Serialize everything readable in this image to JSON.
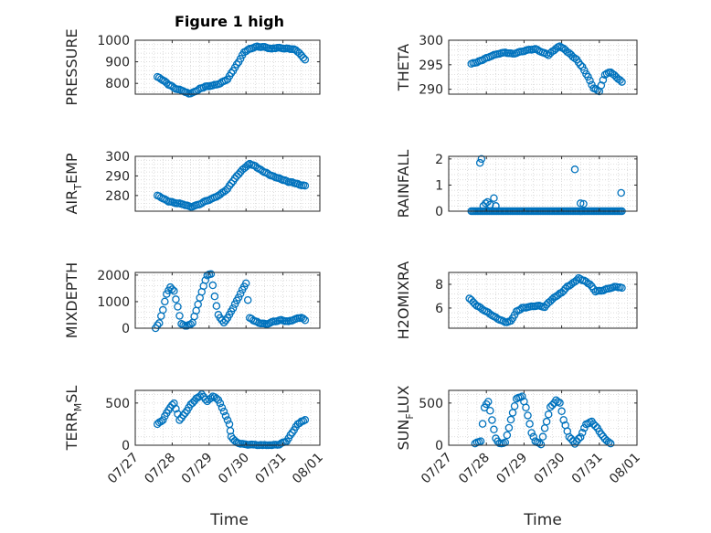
{
  "figure": {
    "title": "Figure 1 high",
    "xlabel": "Time"
  },
  "colors": {
    "marker": "#0072bd",
    "axis": "#262626",
    "grid": "#cfcfcf"
  },
  "chart_data": [
    {
      "type": "scatter",
      "ylabel": "PRESSURE",
      "ylim": [
        750,
        1000
      ],
      "yticks": [
        800,
        900,
        1000
      ],
      "grid": true,
      "xlim": [
        "2018-07-27",
        "2018-08-01"
      ],
      "xticks": [
        "07/27",
        "07/28",
        "07/29",
        "07/30",
        "07/31",
        "08/01"
      ],
      "curve": [
        [
          0.6,
          830
        ],
        [
          0.75,
          815
        ],
        [
          0.9,
          795
        ],
        [
          1.1,
          775
        ],
        [
          1.3,
          765
        ],
        [
          1.45,
          752
        ],
        [
          1.6,
          760
        ],
        [
          1.75,
          775
        ],
        [
          1.9,
          785
        ],
        [
          2.1,
          790
        ],
        [
          2.3,
          800
        ],
        [
          2.5,
          820
        ],
        [
          2.65,
          860
        ],
        [
          2.8,
          900
        ],
        [
          2.95,
          945
        ],
        [
          3.1,
          960
        ],
        [
          3.3,
          970
        ],
        [
          3.5,
          968
        ],
        [
          3.7,
          960
        ],
        [
          3.85,
          965
        ],
        [
          4.05,
          962
        ],
        [
          4.2,
          960
        ],
        [
          4.35,
          955
        ],
        [
          4.5,
          930
        ],
        [
          4.6,
          910
        ]
      ]
    },
    {
      "type": "scatter",
      "ylabel": "THETA",
      "ylim": [
        289,
        300
      ],
      "yticks": [
        290,
        295,
        300
      ],
      "grid": true,
      "xlim": [
        "2018-07-27",
        "2018-08-01"
      ],
      "xticks": [
        "07/27",
        "07/28",
        "07/29",
        "07/30",
        "07/31",
        "08/01"
      ],
      "curve": [
        [
          0.6,
          295.2
        ],
        [
          0.75,
          295.5
        ],
        [
          0.9,
          296
        ],
        [
          1.1,
          296.7
        ],
        [
          1.3,
          297.2
        ],
        [
          1.5,
          297.5
        ],
        [
          1.7,
          297.2
        ],
        [
          1.9,
          297.6
        ],
        [
          2.1,
          298
        ],
        [
          2.3,
          298.2
        ],
        [
          2.5,
          297.5
        ],
        [
          2.65,
          297
        ],
        [
          2.8,
          298
        ],
        [
          2.95,
          298.8
        ],
        [
          3.1,
          298
        ],
        [
          3.25,
          297
        ],
        [
          3.4,
          296
        ],
        [
          3.55,
          294.5
        ],
        [
          3.7,
          292.5
        ],
        [
          3.85,
          290.2
        ],
        [
          4.0,
          289.6
        ],
        [
          4.15,
          293
        ],
        [
          4.3,
          293.5
        ],
        [
          4.45,
          292.5
        ],
        [
          4.6,
          291.5
        ]
      ]
    },
    {
      "type": "scatter",
      "ylabel": "AIR_TEMP",
      "ylabel_main": "AIR",
      "ylabel_sub": "T",
      "ylabel_rest": "EMP",
      "ylim": [
        272,
        300
      ],
      "yticks": [
        280,
        290,
        300
      ],
      "grid": true,
      "xlim": [
        "2018-07-27",
        "2018-08-01"
      ],
      "xticks": [
        "07/27",
        "07/28",
        "07/29",
        "07/30",
        "07/31",
        "08/01"
      ],
      "curve": [
        [
          0.6,
          280
        ],
        [
          0.75,
          278.5
        ],
        [
          0.9,
          277
        ],
        [
          1.1,
          276.2
        ],
        [
          1.3,
          275.5
        ],
        [
          1.5,
          274.2
        ],
        [
          1.7,
          275.2
        ],
        [
          1.9,
          277
        ],
        [
          2.1,
          278.5
        ],
        [
          2.3,
          280.5
        ],
        [
          2.5,
          283.5
        ],
        [
          2.65,
          287.5
        ],
        [
          2.8,
          291
        ],
        [
          2.95,
          294
        ],
        [
          3.1,
          296.2
        ],
        [
          3.25,
          295
        ],
        [
          3.4,
          293
        ],
        [
          3.55,
          291.5
        ],
        [
          3.7,
          290
        ],
        [
          3.85,
          289
        ],
        [
          4.0,
          288
        ],
        [
          4.15,
          287
        ],
        [
          4.3,
          286.5
        ],
        [
          4.45,
          285.5
        ],
        [
          4.6,
          285
        ]
      ]
    },
    {
      "type": "scatter",
      "ylabel": "RAINFALL",
      "ylim": [
        0,
        2.1
      ],
      "yticks": [
        0,
        1,
        2
      ],
      "grid": true,
      "xlim": [
        "2018-07-27",
        "2018-08-01"
      ],
      "xticks": [
        "07/27",
        "07/28",
        "07/29",
        "07/30",
        "07/31",
        "08/01"
      ],
      "base": [
        0.6,
        4.6,
        0
      ],
      "points": [
        [
          0.83,
          1.85
        ],
        [
          0.87,
          2.0
        ],
        [
          0.92,
          0.2
        ],
        [
          0.98,
          0.3
        ],
        [
          1.03,
          0.35
        ],
        [
          1.1,
          0.25
        ],
        [
          1.2,
          0.5
        ],
        [
          1.25,
          0.2
        ],
        [
          3.35,
          1.6
        ],
        [
          3.5,
          0.3
        ],
        [
          3.58,
          0.28
        ],
        [
          4.58,
          0.7
        ]
      ]
    },
    {
      "type": "scatter",
      "ylabel": "MIXDEPTH",
      "ylim": [
        0,
        2100
      ],
      "yticks": [
        0,
        1000,
        2000
      ],
      "grid": true,
      "xlim": [
        "2018-07-27",
        "2018-08-01"
      ],
      "xticks": [
        "07/27",
        "07/28",
        "07/29",
        "07/30",
        "07/31",
        "08/01"
      ],
      "curve": [
        [
          0.55,
          0
        ],
        [
          0.65,
          200
        ],
        [
          0.75,
          700
        ],
        [
          0.85,
          1300
        ],
        [
          0.95,
          1550
        ],
        [
          1.05,
          1400
        ],
        [
          1.15,
          800
        ],
        [
          1.25,
          150
        ],
        [
          1.4,
          80
        ],
        [
          1.55,
          200
        ],
        [
          1.7,
          900
        ],
        [
          1.85,
          1600
        ],
        [
          1.95,
          2000
        ],
        [
          2.05,
          2050
        ],
        [
          2.15,
          1200
        ],
        [
          2.25,
          500
        ],
        [
          2.4,
          200
        ],
        [
          2.55,
          500
        ],
        [
          2.7,
          900
        ],
        [
          2.85,
          1300
        ],
        [
          3.0,
          1700
        ],
        [
          3.1,
          400
        ],
        [
          3.2,
          300
        ],
        [
          3.35,
          200
        ],
        [
          3.55,
          150
        ],
        [
          3.75,
          250
        ],
        [
          3.95,
          300
        ],
        [
          4.15,
          250
        ],
        [
          4.35,
          350
        ],
        [
          4.5,
          400
        ],
        [
          4.6,
          300
        ]
      ]
    },
    {
      "type": "scatter",
      "ylabel": "H2OMIXRA",
      "ylim": [
        4.3,
        9
      ],
      "yticks": [
        6,
        8
      ],
      "grid": true,
      "xlim": [
        "2018-07-27",
        "2018-08-01"
      ],
      "xticks": [
        "07/27",
        "07/28",
        "07/29",
        "07/30",
        "07/31",
        "08/01"
      ],
      "curve": [
        [
          0.55,
          6.8
        ],
        [
          0.75,
          6.2
        ],
        [
          0.95,
          5.8
        ],
        [
          1.15,
          5.4
        ],
        [
          1.3,
          5.1
        ],
        [
          1.5,
          4.8
        ],
        [
          1.65,
          4.9
        ],
        [
          1.8,
          5.7
        ],
        [
          1.95,
          6.0
        ],
        [
          2.15,
          6.1
        ],
        [
          2.35,
          6.2
        ],
        [
          2.55,
          6.1
        ],
        [
          2.7,
          6.6
        ],
        [
          2.85,
          7.0
        ],
        [
          3.0,
          7.3
        ],
        [
          3.15,
          7.8
        ],
        [
          3.3,
          8.1
        ],
        [
          3.45,
          8.5
        ],
        [
          3.6,
          8.3
        ],
        [
          3.75,
          8.0
        ],
        [
          3.9,
          7.4
        ],
        [
          4.1,
          7.5
        ],
        [
          4.3,
          7.7
        ],
        [
          4.45,
          7.8
        ],
        [
          4.6,
          7.7
        ]
      ]
    },
    {
      "type": "scatter",
      "ylabel": "TERR_MSL",
      "ylabel_main": "TERR",
      "ylabel_sub": "M",
      "ylabel_rest": "SL",
      "ylim": [
        0,
        650
      ],
      "yticks": [
        0,
        500
      ],
      "grid": true,
      "xlim": [
        "2018-07-27",
        "2018-08-01"
      ],
      "xticks": [
        "07/27",
        "07/28",
        "07/29",
        "07/30",
        "07/31",
        "08/01"
      ],
      "curve": [
        [
          0.6,
          250
        ],
        [
          0.75,
          300
        ],
        [
          0.9,
          420
        ],
        [
          1.05,
          500
        ],
        [
          1.2,
          300
        ],
        [
          1.35,
          380
        ],
        [
          1.5,
          480
        ],
        [
          1.65,
          550
        ],
        [
          1.8,
          600
        ],
        [
          1.95,
          520
        ],
        [
          2.1,
          580
        ],
        [
          2.25,
          540
        ],
        [
          2.35,
          450
        ],
        [
          2.45,
          350
        ],
        [
          2.55,
          250
        ],
        [
          2.6,
          100
        ],
        [
          2.75,
          30
        ],
        [
          2.95,
          10
        ],
        [
          3.2,
          5
        ],
        [
          3.45,
          0
        ],
        [
          3.7,
          0
        ],
        [
          3.9,
          10
        ],
        [
          4.1,
          50
        ],
        [
          4.25,
          150
        ],
        [
          4.4,
          250
        ],
        [
          4.5,
          280
        ],
        [
          4.6,
          300
        ]
      ]
    },
    {
      "type": "scatter",
      "ylabel": "SUN_FLUX",
      "ylabel_main": "SUN",
      "ylabel_sub": "F",
      "ylabel_rest": "LUX",
      "ylim": [
        0,
        650
      ],
      "yticks": [
        0,
        500
      ],
      "grid": true,
      "xlim": [
        "2018-07-27",
        "2018-08-01"
      ],
      "xticks": [
        "07/27",
        "07/28",
        "07/29",
        "07/30",
        "07/31",
        "08/01"
      ],
      "curve": [
        [
          0.7,
          20
        ],
        [
          0.85,
          50
        ],
        [
          0.95,
          450
        ],
        [
          1.05,
          520
        ],
        [
          1.15,
          300
        ],
        [
          1.25,
          80
        ],
        [
          1.35,
          20
        ],
        [
          1.5,
          30
        ],
        [
          1.65,
          300
        ],
        [
          1.8,
          550
        ],
        [
          1.95,
          580
        ],
        [
          2.05,
          450
        ],
        [
          2.2,
          150
        ],
        [
          2.3,
          50
        ],
        [
          2.45,
          10
        ],
        [
          2.55,
          200
        ],
        [
          2.7,
          450
        ],
        [
          2.85,
          530
        ],
        [
          2.95,
          500
        ],
        [
          3.05,
          300
        ],
        [
          3.2,
          100
        ],
        [
          3.35,
          20
        ],
        [
          3.5,
          100
        ],
        [
          3.65,
          250
        ],
        [
          3.8,
          280
        ],
        [
          3.95,
          200
        ],
        [
          4.1,
          100
        ],
        [
          4.2,
          50
        ],
        [
          4.3,
          20
        ]
      ]
    }
  ]
}
